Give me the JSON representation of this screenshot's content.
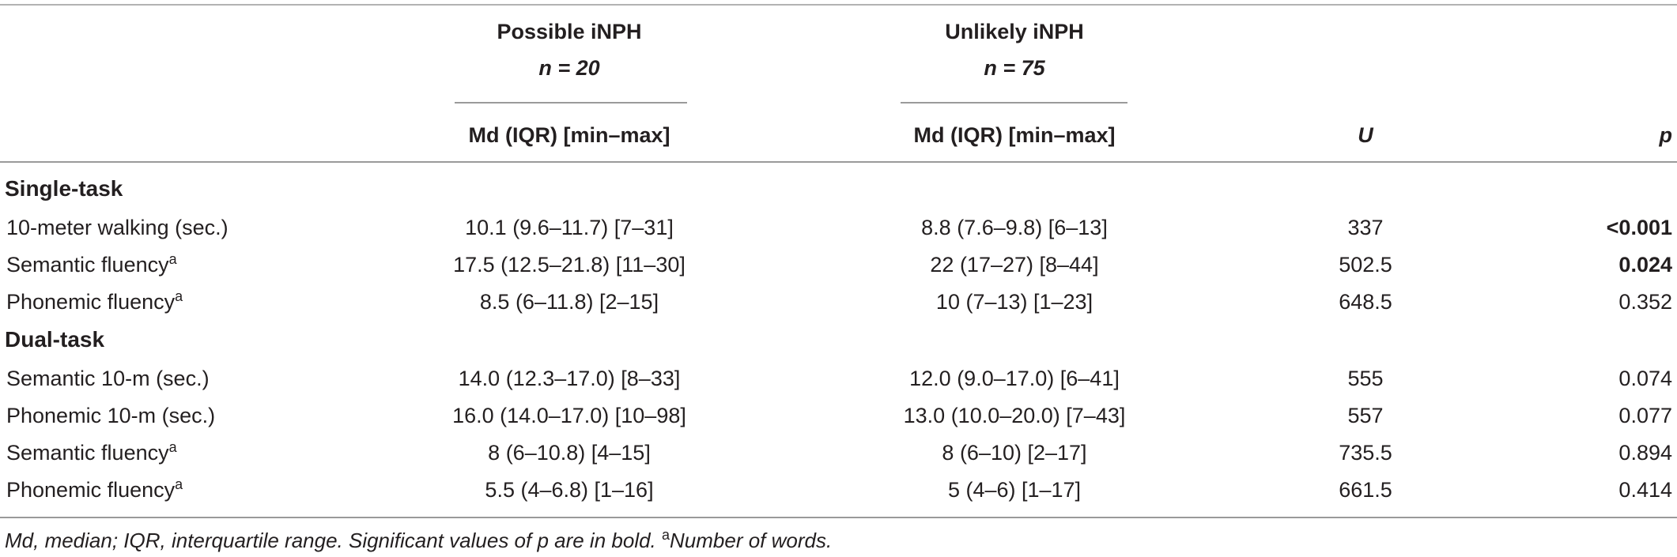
{
  "header": {
    "groups": [
      {
        "title": "Possible iNPH",
        "n_label": "n = 20",
        "stat_label": "Md (IQR) [min–max]"
      },
      {
        "title": "Unlikely iNPH",
        "n_label": "n = 75",
        "stat_label": "Md (IQR) [min–max]"
      }
    ],
    "u_label": "U",
    "p_label": "p"
  },
  "sections": [
    {
      "title": "Single-task",
      "rows": [
        {
          "label": "10-meter walking (sec.)",
          "sup": "",
          "possible": "10.1 (9.6–11.7) [7–31]",
          "unlikely": "8.8 (7.6–9.8) [6–13]",
          "u": "337",
          "p": "<0.001",
          "p_bold": true
        },
        {
          "label": "Semantic fluency",
          "sup": "a",
          "possible": "17.5 (12.5–21.8) [11–30]",
          "unlikely": "22 (17–27) [8–44]",
          "u": "502.5",
          "p": "0.024",
          "p_bold": true
        },
        {
          "label": "Phonemic fluency",
          "sup": "a",
          "possible": "8.5 (6–11.8) [2–15]",
          "unlikely": "10 (7–13) [1–23]",
          "u": "648.5",
          "p": "0.352",
          "p_bold": false
        }
      ]
    },
    {
      "title": "Dual-task",
      "rows": [
        {
          "label": "Semantic 10-m (sec.)",
          "sup": "",
          "possible": "14.0 (12.3–17.0) [8–33]",
          "unlikely": "12.0 (9.0–17.0) [6–41]",
          "u": "555",
          "p": "0.074",
          "p_bold": false
        },
        {
          "label": "Phonemic 10-m (sec.)",
          "sup": "",
          "possible": "16.0 (14.0–17.0) [10–98]",
          "unlikely": "13.0 (10.0–20.0) [7–43]",
          "u": "557",
          "p": "0.077",
          "p_bold": false
        },
        {
          "label": "Semantic fluency",
          "sup": "a",
          "possible": "8 (6–10.8) [4–15]",
          "unlikely": "8 (6–10) [2–17]",
          "u": "735.5",
          "p": "0.894",
          "p_bold": false
        },
        {
          "label": "Phonemic fluency",
          "sup": "a",
          "possible": "5.5 (4–6.8) [1–16]",
          "unlikely": "5 (4–6) [1–17]",
          "u": "661.5",
          "p": "0.414",
          "p_bold": false
        }
      ]
    }
  ],
  "footnote": {
    "text": "Md, median; IQR, interquartile range. Significant values of p are in bold. ",
    "sup": "a",
    "tail": "Number of words."
  }
}
